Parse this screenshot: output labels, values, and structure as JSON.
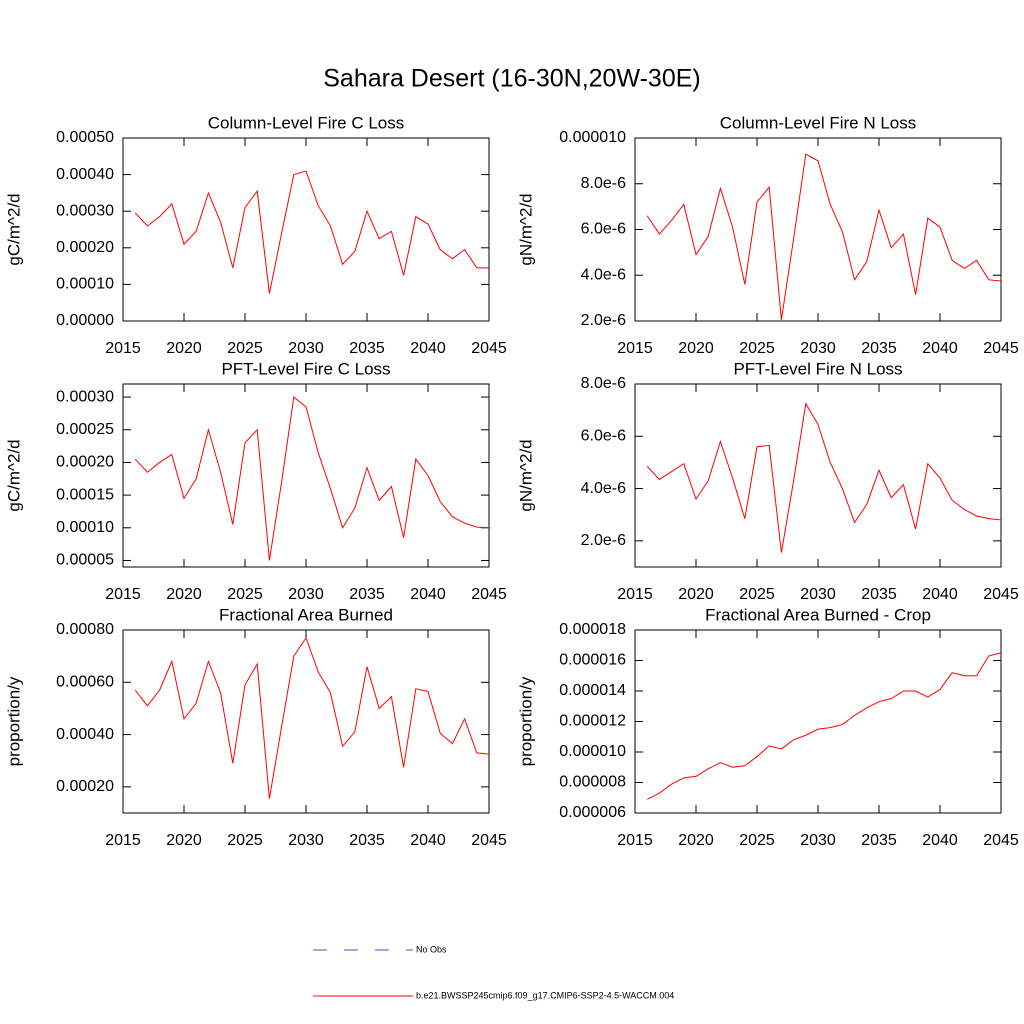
{
  "title": "Sahara Desert (16-30N,20W-30E)",
  "chart_data": [
    {
      "type": "line",
      "title": "Column-Level Fire C Loss",
      "y_label": "gC/m^2/d",
      "x": [
        2016,
        2017,
        2018,
        2019,
        2020,
        2021,
        2022,
        2023,
        2024,
        2025,
        2026,
        2027,
        2028,
        2029,
        2030,
        2031,
        2032,
        2033,
        2034,
        2035,
        2036,
        2037,
        2038,
        2039,
        2040,
        2041,
        2042,
        2043,
        2044,
        2045
      ],
      "series": [
        {
          "color": "#ff0000",
          "values": [
            0.000295,
            0.00026,
            0.000285,
            0.00032,
            0.00021,
            0.000245,
            0.00035,
            0.00027,
            0.000145,
            0.00031,
            0.000355,
            7.5e-05,
            0.00024,
            0.0004,
            0.00041,
            0.000315,
            0.00026,
            0.000155,
            0.00019,
            0.0003,
            0.000225,
            0.000245,
            0.000125,
            0.000285,
            0.000265,
            0.000195,
            0.00017,
            0.000195,
            0.000145,
            0.000145
          ]
        }
      ],
      "xlim": [
        2015,
        2045
      ],
      "xticks": [
        2015,
        2020,
        2025,
        2030,
        2035,
        2040,
        2045
      ],
      "ylim": [
        0,
        0.0005
      ],
      "yticks": [
        {
          "value": 0,
          "label": "0.00000"
        },
        {
          "value": 0.0001,
          "label": "0.00010"
        },
        {
          "value": 0.0002,
          "label": "0.00020"
        },
        {
          "value": 0.0003,
          "label": "0.00030"
        },
        {
          "value": 0.0004,
          "label": "0.00040"
        },
        {
          "value": 0.0005,
          "label": "0.00050"
        }
      ]
    },
    {
      "type": "line",
      "title": "Column-Level Fire N Loss",
      "y_label": "gN/m^2/d",
      "x": [
        2016,
        2017,
        2018,
        2019,
        2020,
        2021,
        2022,
        2023,
        2024,
        2025,
        2026,
        2027,
        2028,
        2029,
        2030,
        2031,
        2032,
        2033,
        2034,
        2035,
        2036,
        2037,
        2038,
        2039,
        2040,
        2041,
        2042,
        2043,
        2044,
        2045
      ],
      "series": [
        {
          "color": "#ff0000",
          "values": [
            6.6e-06,
            5.8e-06,
            6.4e-06,
            7.1e-06,
            4.9e-06,
            5.7e-06,
            7.8e-06,
            6.1e-06,
            3.6e-06,
            7.2e-06,
            7.85e-06,
            2.05e-06,
            5.6e-06,
            9.3e-06,
            9e-06,
            7.1e-06,
            5.9e-06,
            3.8e-06,
            4.6e-06,
            6.85e-06,
            5.2e-06,
            5.8e-06,
            3.15e-06,
            6.5e-06,
            6.1e-06,
            4.65e-06,
            4.3e-06,
            4.65e-06,
            3.8e-06,
            3.75e-06
          ]
        }
      ],
      "xlim": [
        2015,
        2045
      ],
      "xticks": [
        2015,
        2020,
        2025,
        2030,
        2035,
        2040,
        2045
      ],
      "ylim": [
        2e-06,
        1e-05
      ],
      "yticks": [
        {
          "value": 2e-06,
          "label": "2.0e-6"
        },
        {
          "value": 4e-06,
          "label": "4.0e-6"
        },
        {
          "value": 6e-06,
          "label": "6.0e-6"
        },
        {
          "value": 8e-06,
          "label": "8.0e-6"
        },
        {
          "value": 1e-05,
          "label": "0.000010"
        }
      ]
    },
    {
      "type": "line",
      "title": "PFT-Level Fire C Loss",
      "y_label": "gC/m^2/d",
      "x": [
        2016,
        2017,
        2018,
        2019,
        2020,
        2021,
        2022,
        2023,
        2024,
        2025,
        2026,
        2027,
        2028,
        2029,
        2030,
        2031,
        2032,
        2033,
        2034,
        2035,
        2036,
        2037,
        2038,
        2039,
        2040,
        2041,
        2042,
        2043,
        2044,
        2045
      ],
      "series": [
        {
          "color": "#ff0000",
          "values": [
            0.000205,
            0.000185,
            0.0002,
            0.000212,
            0.000145,
            0.000175,
            0.00025,
            0.000185,
            0.000105,
            0.00023,
            0.00025,
            5e-05,
            0.00017,
            0.0003,
            0.000285,
            0.000215,
            0.00016,
            0.0001,
            0.00013,
            0.000192,
            0.000142,
            0.000163,
            8.5e-05,
            0.000205,
            0.00018,
            0.00014,
            0.000117,
            0.000107,
            0.000101,
            0.0001
          ]
        }
      ],
      "xlim": [
        2015,
        2045
      ],
      "xticks": [
        2015,
        2020,
        2025,
        2030,
        2035,
        2040,
        2045
      ],
      "ylim": [
        4e-05,
        0.00032
      ],
      "yticks": [
        {
          "value": 5e-05,
          "label": "0.00005"
        },
        {
          "value": 0.0001,
          "label": "0.00010"
        },
        {
          "value": 0.00015,
          "label": "0.00015"
        },
        {
          "value": 0.0002,
          "label": "0.00020"
        },
        {
          "value": 0.00025,
          "label": "0.00025"
        },
        {
          "value": 0.0003,
          "label": "0.00030"
        }
      ]
    },
    {
      "type": "line",
      "title": "PFT-Level Fire N Loss",
      "y_label": "gN/m^2/d",
      "x": [
        2016,
        2017,
        2018,
        2019,
        2020,
        2021,
        2022,
        2023,
        2024,
        2025,
        2026,
        2027,
        2028,
        2029,
        2030,
        2031,
        2032,
        2033,
        2034,
        2035,
        2036,
        2037,
        2038,
        2039,
        2040,
        2041,
        2042,
        2043,
        2044,
        2045
      ],
      "series": [
        {
          "color": "#ff0000",
          "values": [
            4.85e-06,
            4.35e-06,
            4.65e-06,
            4.95e-06,
            3.6e-06,
            4.3e-06,
            5.8e-06,
            4.4e-06,
            2.85e-06,
            5.6e-06,
            5.65e-06,
            1.55e-06,
            4.3e-06,
            7.25e-06,
            6.45e-06,
            5e-06,
            4e-06,
            2.7e-06,
            3.4e-06,
            4.7e-06,
            3.65e-06,
            4.15e-06,
            2.45e-06,
            4.95e-06,
            4.4e-06,
            3.55e-06,
            3.2e-06,
            2.95e-06,
            2.85e-06,
            2.8e-06
          ]
        }
      ],
      "xlim": [
        2015,
        2045
      ],
      "xticks": [
        2015,
        2020,
        2025,
        2030,
        2035,
        2040,
        2045
      ],
      "ylim": [
        1e-06,
        8e-06
      ],
      "yticks": [
        {
          "value": 2e-06,
          "label": "2.0e-6"
        },
        {
          "value": 4e-06,
          "label": "4.0e-6"
        },
        {
          "value": 6e-06,
          "label": "6.0e-6"
        },
        {
          "value": 8e-06,
          "label": "8.0e-6"
        }
      ]
    },
    {
      "type": "line",
      "title": "Fractional Area Burned",
      "y_label": "proportion/y",
      "x": [
        2016,
        2017,
        2018,
        2019,
        2020,
        2021,
        2022,
        2023,
        2024,
        2025,
        2026,
        2027,
        2028,
        2029,
        2030,
        2031,
        2032,
        2033,
        2034,
        2035,
        2036,
        2037,
        2038,
        2039,
        2040,
        2041,
        2042,
        2043,
        2044,
        2045
      ],
      "series": [
        {
          "color": "#ff0000",
          "values": [
            0.00057,
            0.00051,
            0.00057,
            0.00068,
            0.00046,
            0.00052,
            0.00068,
            0.00056,
            0.00029,
            0.00059,
            0.00067,
            0.000155,
            0.00043,
            0.0007,
            0.00077,
            0.00064,
            0.00056,
            0.000355,
            0.00041,
            0.00066,
            0.0005,
            0.000545,
            0.000275,
            0.000575,
            0.000565,
            0.000405,
            0.000365,
            0.00046,
            0.00033,
            0.000325
          ]
        }
      ],
      "xlim": [
        2015,
        2045
      ],
      "xticks": [
        2015,
        2020,
        2025,
        2030,
        2035,
        2040,
        2045
      ],
      "ylim": [
        0.0001,
        0.0008
      ],
      "yticks": [
        {
          "value": 0.0002,
          "label": "0.00020"
        },
        {
          "value": 0.0004,
          "label": "0.00040"
        },
        {
          "value": 0.0006,
          "label": "0.00060"
        },
        {
          "value": 0.0008,
          "label": "0.00080"
        }
      ]
    },
    {
      "type": "line",
      "title": "Fractional Area Burned - Crop",
      "y_label": "proportion/y",
      "x": [
        2016,
        2017,
        2018,
        2019,
        2020,
        2021,
        2022,
        2023,
        2024,
        2025,
        2026,
        2027,
        2028,
        2029,
        2030,
        2031,
        2032,
        2033,
        2034,
        2035,
        2036,
        2037,
        2038,
        2039,
        2040,
        2041,
        2042,
        2043,
        2044,
        2045
      ],
      "series": [
        {
          "color": "#ff0000",
          "values": [
            6.9e-06,
            7.3e-06,
            7.9e-06,
            8.3e-06,
            8.4e-06,
            8.9e-06,
            9.3e-06,
            9e-06,
            9.1e-06,
            9.7e-06,
            1.04e-05,
            1.02e-05,
            1.08e-05,
            1.11e-05,
            1.15e-05,
            1.16e-05,
            1.18e-05,
            1.24e-05,
            1.29e-05,
            1.33e-05,
            1.35e-05,
            1.4e-05,
            1.4e-05,
            1.36e-05,
            1.41e-05,
            1.52e-05,
            1.5e-05,
            1.5e-05,
            1.63e-05,
            1.65e-05
          ]
        }
      ],
      "xlim": [
        2015,
        2045
      ],
      "xticks": [
        2015,
        2020,
        2025,
        2030,
        2035,
        2040,
        2045
      ],
      "ylim": [
        6e-06,
        1.8e-05
      ],
      "yticks": [
        {
          "value": 6e-06,
          "label": "0.000006"
        },
        {
          "value": 8e-06,
          "label": "0.000008"
        },
        {
          "value": 1e-05,
          "label": "0.000010"
        },
        {
          "value": 1.2e-05,
          "label": "0.000012"
        },
        {
          "value": 1.4e-05,
          "label": "0.000014"
        },
        {
          "value": 1.6e-05,
          "label": "0.000016"
        },
        {
          "value": 1.8e-05,
          "label": "0.000018"
        }
      ]
    }
  ],
  "legend": [
    {
      "label": "No Obs",
      "color": "#4b4bd6",
      "dash": true
    },
    {
      "label": "b.e21.BWSSP245cmip6.f09_g17.CMIP6-SSP2-4.5-WACCM.004",
      "color": "#ff0000",
      "dash": false
    }
  ]
}
